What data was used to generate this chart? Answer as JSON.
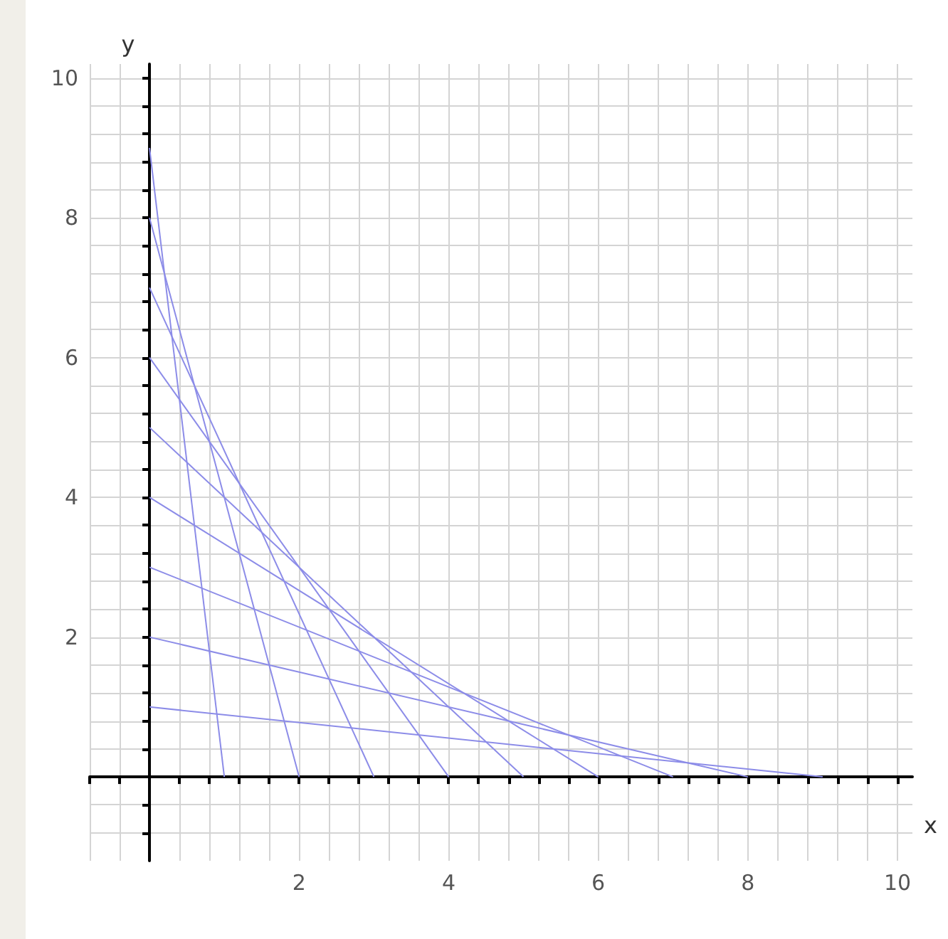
{
  "chart_data": {
    "type": "line",
    "xlabel": "x",
    "ylabel": "y",
    "grid": true,
    "marker": "none",
    "line_style": "solid",
    "xlim": [
      -0.8,
      10.2
    ],
    "ylim": [
      -1.2,
      10.2
    ],
    "xticks": [
      {
        "value": -0.8,
        "label": null
      },
      {
        "value": -0.4,
        "label": null
      },
      {
        "value": 0.4,
        "label": null
      },
      {
        "value": 0.8,
        "label": null
      },
      {
        "value": 1.2,
        "label": null
      },
      {
        "value": 1.6,
        "label": null
      },
      2,
      {
        "value": 2.4,
        "label": null
      },
      {
        "value": 2.8,
        "label": null
      },
      {
        "value": 3.2,
        "label": null
      },
      {
        "value": 3.6,
        "label": null
      },
      4,
      {
        "value": 4.4,
        "label": null
      },
      {
        "value": 4.8,
        "label": null
      },
      {
        "value": 5.2,
        "label": null
      },
      {
        "value": 5.6,
        "label": null
      },
      6,
      {
        "value": 6.4,
        "label": null
      },
      {
        "value": 6.8,
        "label": null
      },
      {
        "value": 7.2,
        "label": null
      },
      {
        "value": 7.6,
        "label": null
      },
      8,
      {
        "value": 8.4,
        "label": null
      },
      {
        "value": 8.8,
        "label": null
      },
      {
        "value": 9.2,
        "label": null
      },
      {
        "value": 9.6,
        "label": null
      },
      10
    ],
    "yticks": [
      {
        "value": -0.8,
        "label": null
      },
      {
        "value": -0.4,
        "label": null
      },
      {
        "value": 0.4,
        "label": null
      },
      {
        "value": 0.8,
        "label": null
      },
      {
        "value": 1.2,
        "label": null
      },
      {
        "value": 1.6,
        "label": null
      },
      2,
      {
        "value": 2.4,
        "label": null
      },
      {
        "value": 2.8,
        "label": null
      },
      {
        "value": 3.2,
        "label": null
      },
      {
        "value": 3.6,
        "label": null
      },
      4,
      {
        "value": 4.4,
        "label": null
      },
      {
        "value": 4.8,
        "label": null
      },
      {
        "value": 5.2,
        "label": null
      },
      {
        "value": 5.6,
        "label": null
      },
      6,
      {
        "value": 6.4,
        "label": null
      },
      {
        "value": 6.8,
        "label": null
      },
      {
        "value": 7.2,
        "label": null
      },
      {
        "value": 7.6,
        "label": null
      },
      8,
      {
        "value": 8.4,
        "label": null
      },
      {
        "value": 8.8,
        "label": null
      },
      {
        "value": 9.2,
        "label": null
      },
      {
        "value": 9.6,
        "label": null
      },
      10
    ],
    "series": [
      {
        "color": "#8c8ce8",
        "x": [
          0,
          1
        ],
        "values": [
          9,
          0
        ]
      },
      {
        "color": "#8c8ce8",
        "x": [
          0,
          2
        ],
        "values": [
          8,
          0
        ]
      },
      {
        "color": "#8c8ce8",
        "x": [
          0,
          3
        ],
        "values": [
          7,
          0
        ]
      },
      {
        "color": "#8c8ce8",
        "x": [
          0,
          4
        ],
        "values": [
          6,
          0
        ]
      },
      {
        "color": "#8c8ce8",
        "x": [
          0,
          5
        ],
        "values": [
          5,
          0
        ]
      },
      {
        "color": "#8c8ce8",
        "x": [
          0,
          6
        ],
        "values": [
          4,
          0
        ]
      },
      {
        "color": "#8c8ce8",
        "x": [
          0,
          7
        ],
        "values": [
          3,
          0
        ]
      },
      {
        "color": "#8c8ce8",
        "x": [
          0,
          8
        ],
        "values": [
          2,
          0
        ]
      },
      {
        "color": "#8c8ce8",
        "x": [
          0,
          9
        ],
        "values": [
          1,
          0
        ]
      }
    ]
  }
}
